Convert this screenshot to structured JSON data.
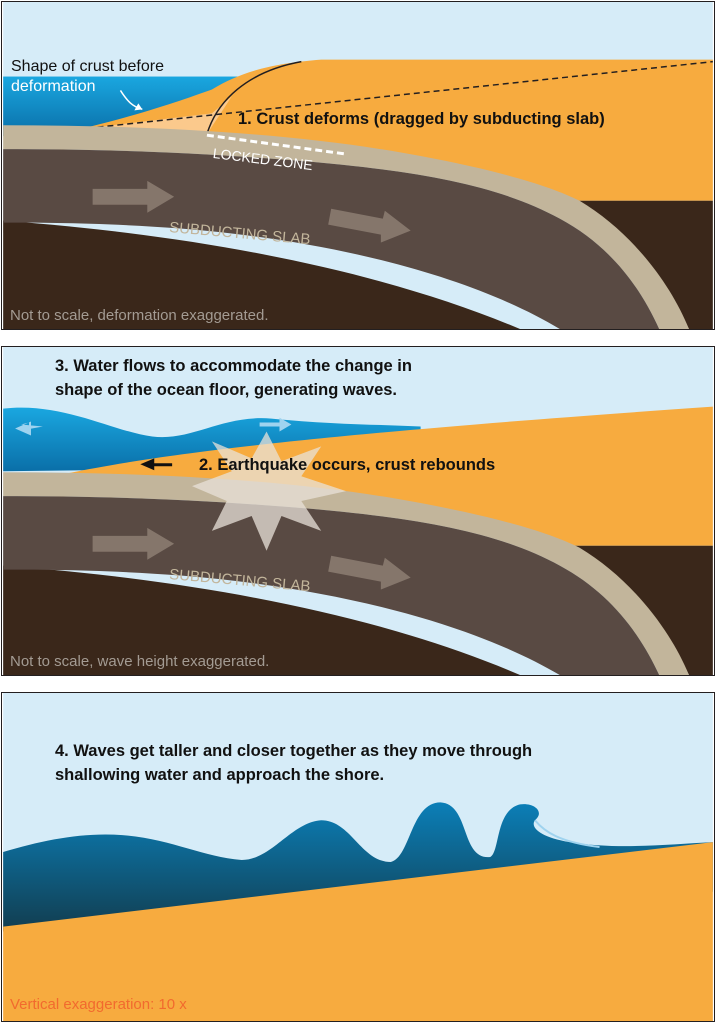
{
  "colors": {
    "sky": "#d6ecf8",
    "water": "#0e86c4",
    "crust": "#f7ab3f",
    "crust_light": "#fbc98c",
    "slab": "#c2b59b",
    "slab_interior": "#594a43",
    "mantle": "#3a271a",
    "note_gray": "#a39b93",
    "note_orange": "#f26a2e"
  },
  "panel1": {
    "label_before_line1": "Shape of crust before",
    "label_before_line2": "deformation",
    "step1": "1. Crust deforms (dragged by subducting slab)",
    "locked_zone": "LOCKED ZONE",
    "slab_label": "SUBDUCTING SLAB",
    "note": "Not to scale, deformation exaggerated."
  },
  "panel2": {
    "step3_line1": "3. Water flows to accommodate the change in",
    "step3_line2": "shape of the ocean floor, generating waves.",
    "step2": "2. Earthquake occurs, crust rebounds",
    "slab_label": "SUBDUCTING SLAB",
    "note": "Not to scale, wave height exaggerated."
  },
  "panel3": {
    "step4_line1": "4. Waves get taller and closer together as they move through",
    "step4_line2": "shallowing water and approach the shore.",
    "note": "Vertical exaggeration: 10 x"
  }
}
